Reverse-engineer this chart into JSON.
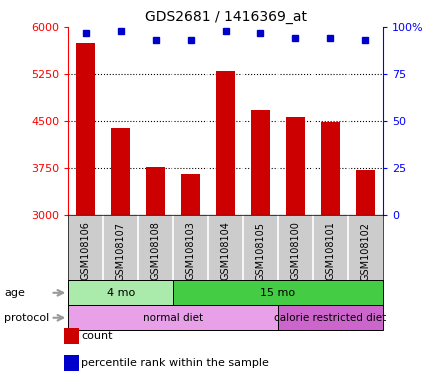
{
  "title": "GDS2681 / 1416369_at",
  "samples": [
    "GSM108106",
    "GSM108107",
    "GSM108108",
    "GSM108103",
    "GSM108104",
    "GSM108105",
    "GSM108100",
    "GSM108101",
    "GSM108102"
  ],
  "counts": [
    5750,
    4380,
    3760,
    3650,
    5300,
    4670,
    4570,
    4480,
    3720
  ],
  "percentile_ranks": [
    97,
    98,
    93,
    93,
    98,
    97,
    94,
    94,
    93
  ],
  "ymin": 3000,
  "ymax": 6000,
  "yticks": [
    3000,
    3750,
    4500,
    5250,
    6000
  ],
  "right_yticks": [
    0,
    25,
    50,
    75,
    100
  ],
  "bar_color": "#cc0000",
  "dot_color": "#0000cc",
  "age_groups": [
    {
      "label": "4 mo",
      "start": 0,
      "end": 3,
      "color": "#aaeaaa"
    },
    {
      "label": "15 mo",
      "start": 3,
      "end": 9,
      "color": "#44cc44"
    }
  ],
  "protocol_groups": [
    {
      "label": "normal diet",
      "start": 0,
      "end": 6,
      "color": "#e8a0e8"
    },
    {
      "label": "calorie restricted diet",
      "start": 6,
      "end": 9,
      "color": "#cc66cc"
    }
  ],
  "legend_items": [
    {
      "color": "#cc0000",
      "label": "count"
    },
    {
      "color": "#0000cc",
      "label": "percentile rank within the sample"
    }
  ],
  "background_color": "#ffffff",
  "label_bg_color": "#cccccc",
  "plot_bg_color": "#ffffff",
  "arrow_color": "#999999"
}
